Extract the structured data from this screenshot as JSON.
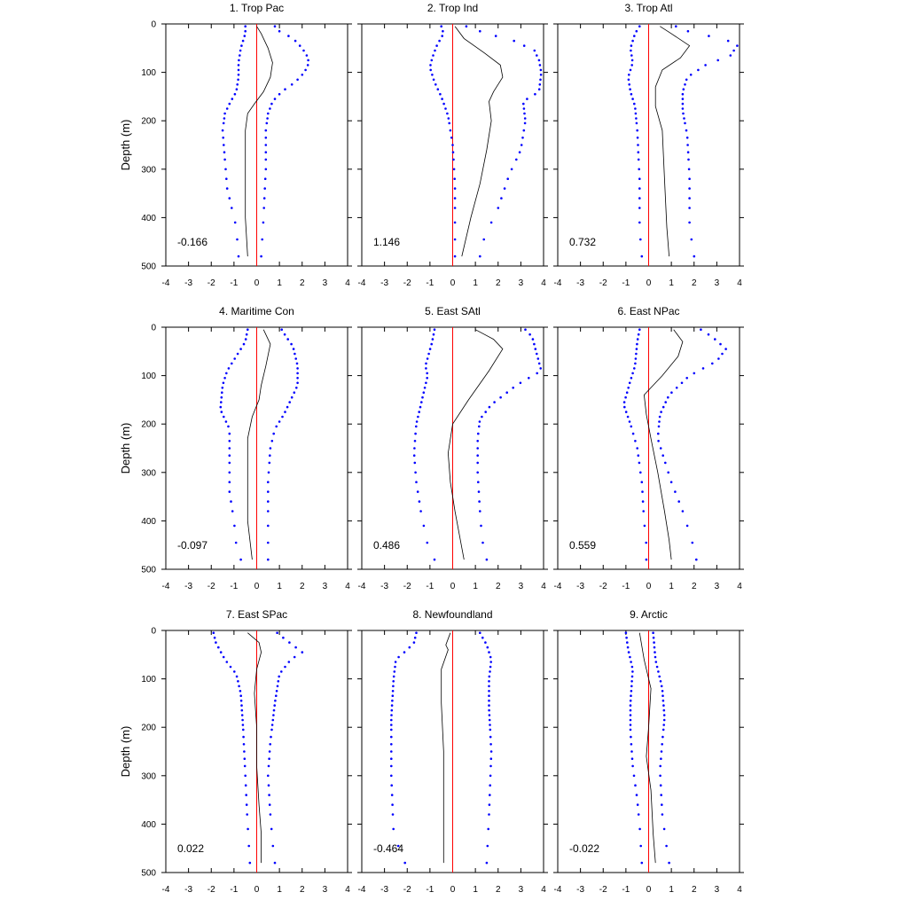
{
  "chart_data": {
    "type": "line",
    "ylabel": "Depth (m)",
    "ylim": [
      0,
      500
    ],
    "y_inverted": true,
    "xlim": [
      -4,
      4
    ],
    "x_ticks": [
      -4,
      -3,
      -2,
      -1,
      0,
      1,
      2,
      3,
      4
    ],
    "y_ticks": [
      0,
      100,
      200,
      300,
      400,
      500
    ],
    "depth_levels": [
      5,
      15,
      25,
      35,
      45,
      55,
      65,
      75,
      85,
      95,
      105,
      115,
      125,
      135,
      145,
      155,
      165,
      175,
      185,
      195,
      205,
      220,
      235,
      250,
      265,
      280,
      300,
      320,
      340,
      360,
      380,
      410,
      445,
      480
    ],
    "colors": {
      "mean": "#000000",
      "bounds": "#0000ff",
      "zero_line": "#ff0000"
    },
    "panels": [
      {
        "title": "1. Trop Pac",
        "value_label": "-0.166",
        "mean": [
          [
            0.0,
            5
          ],
          [
            0.2,
            20
          ],
          [
            0.5,
            50
          ],
          [
            0.7,
            80
          ],
          [
            0.6,
            110
          ],
          [
            0.3,
            140
          ],
          [
            -0.1,
            165
          ],
          [
            -0.4,
            185
          ],
          [
            -0.5,
            220
          ],
          [
            -0.5,
            300
          ],
          [
            -0.5,
            400
          ],
          [
            -0.4,
            480
          ]
        ],
        "upper": [
          [
            0.8,
            5
          ],
          [
            1.0,
            15
          ],
          [
            1.4,
            25
          ],
          [
            1.7,
            35
          ],
          [
            2.0,
            50
          ],
          [
            2.2,
            65
          ],
          [
            2.3,
            80
          ],
          [
            2.1,
            100
          ],
          [
            1.7,
            120
          ],
          [
            1.1,
            140
          ],
          [
            0.7,
            160
          ],
          [
            0.5,
            185
          ],
          [
            0.4,
            220
          ],
          [
            0.4,
            300
          ],
          [
            0.3,
            400
          ],
          [
            0.2,
            480
          ]
        ],
        "lower": [
          [
            -0.5,
            5
          ],
          [
            -0.5,
            20
          ],
          [
            -0.7,
            50
          ],
          [
            -0.8,
            80
          ],
          [
            -0.8,
            110
          ],
          [
            -0.9,
            140
          ],
          [
            -1.2,
            165
          ],
          [
            -1.4,
            185
          ],
          [
            -1.5,
            220
          ],
          [
            -1.4,
            280
          ],
          [
            -1.3,
            340
          ],
          [
            -1.1,
            380
          ],
          [
            -0.9,
            420
          ],
          [
            -0.8,
            480
          ]
        ]
      },
      {
        "title": "2. Trop Ind",
        "value_label": "1.146",
        "mean": [
          [
            0.1,
            5
          ],
          [
            0.5,
            30
          ],
          [
            1.4,
            60
          ],
          [
            2.1,
            85
          ],
          [
            2.2,
            110
          ],
          [
            1.8,
            140
          ],
          [
            1.6,
            160
          ],
          [
            1.7,
            200
          ],
          [
            1.5,
            260
          ],
          [
            1.2,
            330
          ],
          [
            0.8,
            400
          ],
          [
            0.4,
            480
          ]
        ],
        "upper": [
          [
            0.6,
            5
          ],
          [
            1.5,
            20
          ],
          [
            2.7,
            35
          ],
          [
            3.6,
            55
          ],
          [
            3.8,
            75
          ],
          [
            3.9,
            100
          ],
          [
            3.8,
            140
          ],
          [
            3.1,
            160
          ],
          [
            3.2,
            200
          ],
          [
            3.0,
            260
          ],
          [
            2.5,
            310
          ],
          [
            2.0,
            380
          ],
          [
            1.4,
            440
          ],
          [
            1.2,
            480
          ]
        ],
        "lower": [
          [
            -0.5,
            5
          ],
          [
            -0.4,
            20
          ],
          [
            -0.7,
            45
          ],
          [
            -0.9,
            70
          ],
          [
            -1.0,
            90
          ],
          [
            -0.8,
            120
          ],
          [
            -0.5,
            150
          ],
          [
            -0.2,
            190
          ],
          [
            0.0,
            250
          ],
          [
            0.1,
            330
          ],
          [
            0.1,
            420
          ],
          [
            0.1,
            480
          ]
        ]
      },
      {
        "title": "3. Trop Atl",
        "value_label": "0.732",
        "mean": [
          [
            0.5,
            5
          ],
          [
            1.0,
            20
          ],
          [
            1.8,
            45
          ],
          [
            1.4,
            70
          ],
          [
            0.6,
            95
          ],
          [
            0.3,
            130
          ],
          [
            0.3,
            170
          ],
          [
            0.6,
            220
          ],
          [
            0.7,
            320
          ],
          [
            0.8,
            420
          ],
          [
            0.9,
            480
          ]
        ],
        "upper": [
          [
            1.2,
            5
          ],
          [
            2.0,
            20
          ],
          [
            3.3,
            30
          ],
          [
            3.9,
            45
          ],
          [
            3.6,
            65
          ],
          [
            2.5,
            85
          ],
          [
            1.7,
            110
          ],
          [
            1.5,
            140
          ],
          [
            1.5,
            180
          ],
          [
            1.7,
            230
          ],
          [
            1.8,
            320
          ],
          [
            1.8,
            420
          ],
          [
            2.0,
            480
          ]
        ],
        "lower": [
          [
            -0.4,
            5
          ],
          [
            -0.6,
            20
          ],
          [
            -0.8,
            50
          ],
          [
            -0.7,
            80
          ],
          [
            -0.9,
            110
          ],
          [
            -0.8,
            140
          ],
          [
            -0.6,
            170
          ],
          [
            -0.5,
            220
          ],
          [
            -0.4,
            320
          ],
          [
            -0.4,
            420
          ],
          [
            -0.3,
            480
          ]
        ]
      },
      {
        "title": "4. Maritime Con",
        "value_label": "-0.097",
        "mean": [
          [
            0.3,
            5
          ],
          [
            0.6,
            35
          ],
          [
            0.4,
            80
          ],
          [
            0.2,
            120
          ],
          [
            0.1,
            150
          ],
          [
            -0.2,
            185
          ],
          [
            -0.4,
            230
          ],
          [
            -0.4,
            300
          ],
          [
            -0.4,
            400
          ],
          [
            -0.2,
            480
          ]
        ],
        "upper": [
          [
            1.1,
            5
          ],
          [
            1.3,
            20
          ],
          [
            1.6,
            40
          ],
          [
            1.8,
            80
          ],
          [
            1.8,
            120
          ],
          [
            1.5,
            150
          ],
          [
            1.2,
            180
          ],
          [
            0.8,
            210
          ],
          [
            0.6,
            250
          ],
          [
            0.5,
            320
          ],
          [
            0.5,
            420
          ],
          [
            0.5,
            480
          ]
        ],
        "lower": [
          [
            -0.4,
            5
          ],
          [
            -0.5,
            30
          ],
          [
            -0.9,
            60
          ],
          [
            -1.3,
            90
          ],
          [
            -1.5,
            120
          ],
          [
            -1.6,
            170
          ],
          [
            -1.2,
            210
          ],
          [
            -1.2,
            280
          ],
          [
            -1.2,
            340
          ],
          [
            -1.0,
            400
          ],
          [
            -0.9,
            450
          ],
          [
            -0.7,
            480
          ]
        ]
      },
      {
        "title": "5. East SAtl",
        "value_label": "0.486",
        "mean": [
          [
            1.0,
            5
          ],
          [
            1.8,
            25
          ],
          [
            2.2,
            45
          ],
          [
            1.6,
            90
          ],
          [
            0.7,
            150
          ],
          [
            0.0,
            200
          ],
          [
            -0.2,
            260
          ],
          [
            -0.1,
            320
          ],
          [
            0.1,
            380
          ],
          [
            0.3,
            430
          ],
          [
            0.5,
            480
          ]
        ],
        "upper": [
          [
            3.2,
            5
          ],
          [
            3.5,
            20
          ],
          [
            3.9,
            90
          ],
          [
            2.8,
            120
          ],
          [
            1.7,
            160
          ],
          [
            1.2,
            190
          ],
          [
            1.1,
            230
          ],
          [
            1.1,
            300
          ],
          [
            1.2,
            380
          ],
          [
            1.3,
            440
          ],
          [
            1.5,
            480
          ]
        ],
        "lower": [
          [
            -0.8,
            5
          ],
          [
            -0.9,
            30
          ],
          [
            -1.2,
            80
          ],
          [
            -1.1,
            100
          ],
          [
            -1.3,
            140
          ],
          [
            -1.6,
            200
          ],
          [
            -1.7,
            260
          ],
          [
            -1.6,
            320
          ],
          [
            -1.4,
            380
          ],
          [
            -1.1,
            450
          ],
          [
            -0.8,
            480
          ]
        ]
      },
      {
        "title": "6. East NPac",
        "value_label": "0.559",
        "mean": [
          [
            1.1,
            5
          ],
          [
            1.5,
            30
          ],
          [
            1.3,
            60
          ],
          [
            0.6,
            100
          ],
          [
            -0.2,
            140
          ],
          [
            -0.1,
            180
          ],
          [
            0.1,
            230
          ],
          [
            0.4,
            300
          ],
          [
            0.7,
            380
          ],
          [
            0.9,
            440
          ],
          [
            1.0,
            480
          ]
        ],
        "upper": [
          [
            2.3,
            5
          ],
          [
            2.8,
            20
          ],
          [
            3.4,
            45
          ],
          [
            3.0,
            70
          ],
          [
            1.8,
            100
          ],
          [
            0.9,
            140
          ],
          [
            0.5,
            180
          ],
          [
            0.4,
            230
          ],
          [
            1.0,
            320
          ],
          [
            1.5,
            380
          ],
          [
            1.9,
            440
          ],
          [
            2.1,
            480
          ]
        ],
        "lower": [
          [
            -0.4,
            5
          ],
          [
            -0.5,
            30
          ],
          [
            -0.6,
            80
          ],
          [
            -0.8,
            110
          ],
          [
            -1.1,
            160
          ],
          [
            -0.8,
            200
          ],
          [
            -0.5,
            250
          ],
          [
            -0.3,
            320
          ],
          [
            -0.2,
            400
          ],
          [
            -0.1,
            450
          ],
          [
            -0.1,
            480
          ]
        ]
      },
      {
        "title": "7. East SPac",
        "value_label": "0.022",
        "mean": [
          [
            -0.4,
            5
          ],
          [
            0.1,
            25
          ],
          [
            0.2,
            45
          ],
          [
            0.0,
            80
          ],
          [
            -0.1,
            130
          ],
          [
            0.0,
            200
          ],
          [
            0.0,
            280
          ],
          [
            0.1,
            360
          ],
          [
            0.2,
            420
          ],
          [
            0.2,
            480
          ]
        ],
        "upper": [
          [
            0.9,
            5
          ],
          [
            1.3,
            20
          ],
          [
            2.0,
            45
          ],
          [
            1.5,
            60
          ],
          [
            1.0,
            90
          ],
          [
            0.8,
            150
          ],
          [
            0.6,
            230
          ],
          [
            0.5,
            300
          ],
          [
            0.6,
            380
          ],
          [
            0.7,
            440
          ],
          [
            0.8,
            480
          ]
        ],
        "lower": [
          [
            -1.9,
            5
          ],
          [
            -1.8,
            25
          ],
          [
            -1.4,
            60
          ],
          [
            -0.9,
            90
          ],
          [
            -0.7,
            130
          ],
          [
            -0.6,
            200
          ],
          [
            -0.5,
            300
          ],
          [
            -0.4,
            400
          ],
          [
            -0.3,
            480
          ]
        ]
      },
      {
        "title": "8. Newfoundland",
        "value_label": "-0.464",
        "mean": [
          [
            -0.1,
            5
          ],
          [
            -0.3,
            30
          ],
          [
            -0.2,
            40
          ],
          [
            -0.5,
            80
          ],
          [
            -0.5,
            150
          ],
          [
            -0.4,
            250
          ],
          [
            -0.4,
            350
          ],
          [
            -0.4,
            430
          ],
          [
            -0.4,
            480
          ]
        ],
        "upper": [
          [
            1.2,
            5
          ],
          [
            1.5,
            30
          ],
          [
            1.7,
            60
          ],
          [
            1.6,
            100
          ],
          [
            1.6,
            160
          ],
          [
            1.7,
            250
          ],
          [
            1.6,
            380
          ],
          [
            1.5,
            480
          ]
        ],
        "lower": [
          [
            -1.6,
            5
          ],
          [
            -1.7,
            25
          ],
          [
            -2.0,
            40
          ],
          [
            -2.5,
            60
          ],
          [
            -2.6,
            100
          ],
          [
            -2.7,
            180
          ],
          [
            -2.7,
            300
          ],
          [
            -2.6,
            420
          ],
          [
            -2.1,
            480
          ]
        ]
      },
      {
        "title": "9. Arctic",
        "value_label": "-0.022",
        "mean": [
          [
            -0.4,
            5
          ],
          [
            -0.2,
            60
          ],
          [
            0.1,
            120
          ],
          [
            0.0,
            200
          ],
          [
            -0.1,
            260
          ],
          [
            0.1,
            330
          ],
          [
            0.2,
            420
          ],
          [
            0.3,
            480
          ]
        ],
        "upper": [
          [
            0.2,
            5
          ],
          [
            0.3,
            60
          ],
          [
            0.6,
            120
          ],
          [
            0.7,
            180
          ],
          [
            0.6,
            230
          ],
          [
            0.5,
            290
          ],
          [
            0.6,
            380
          ],
          [
            0.8,
            450
          ],
          [
            0.9,
            480
          ]
        ],
        "lower": [
          [
            -1.0,
            5
          ],
          [
            -0.9,
            40
          ],
          [
            -0.7,
            80
          ],
          [
            -0.8,
            150
          ],
          [
            -0.8,
            210
          ],
          [
            -0.7,
            280
          ],
          [
            -0.5,
            350
          ],
          [
            -0.4,
            400
          ],
          [
            -0.3,
            480
          ]
        ]
      }
    ]
  }
}
